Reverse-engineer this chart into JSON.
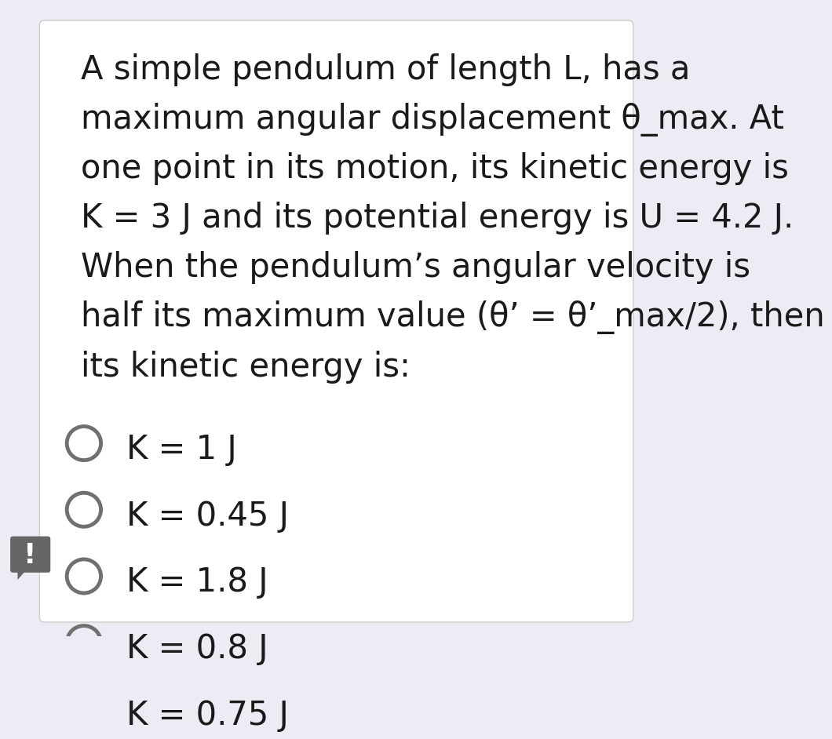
{
  "background_color": "#ecedf4",
  "card_color": "#ffffff",
  "text_color": "#1a1a1a",
  "question_text_lines": [
    "A simple pendulum of length L, has a",
    "maximum angular displacement θ_max. At",
    "one point in its motion, its kinetic energy is",
    "K = 3 J and its potential energy is U = 4.2 J.",
    "When the pendulum’s angular velocity is",
    "half its maximum value (θ’ = θ’_max/2), then",
    "its kinetic energy is:"
  ],
  "options": [
    "K = 1 J",
    "K = 0.45 J",
    "K = 1.8 J",
    "K = 0.8 J",
    "K = 0.75 J"
  ],
  "question_fontsize": 30,
  "option_fontsize": 30,
  "circle_color": "#707070",
  "circle_linewidth": 3.5,
  "notif_color": "#666666"
}
